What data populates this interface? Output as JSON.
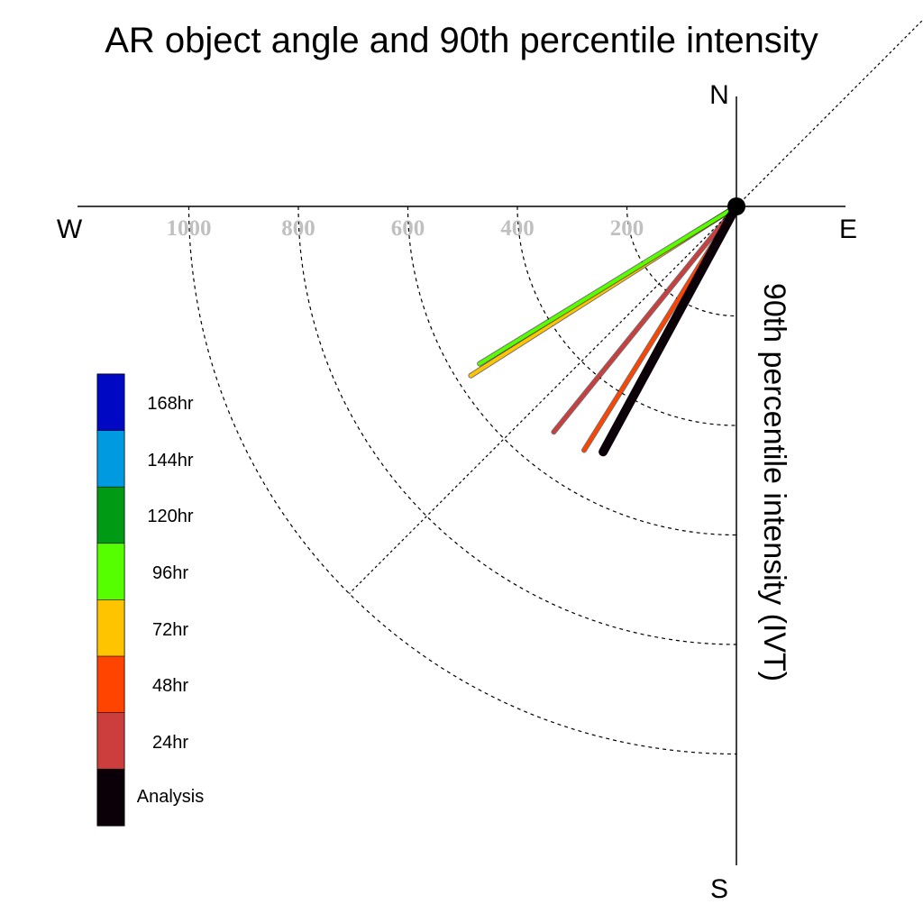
{
  "chart_data": {
    "type": "polar-line",
    "title": "AR object angle and 90th percentile intensity",
    "ylabel": "90th percentile intensity (IVT)",
    "compass": {
      "north": "N",
      "south": "S",
      "east": "E",
      "west": "W"
    },
    "radial_ticks": [
      "200",
      "400",
      "600",
      "800",
      "1000"
    ],
    "radial_tick_values": [
      200,
      400,
      600,
      800,
      1000
    ],
    "radial_max": 1000,
    "diagonals_deg": [
      45,
      225
    ],
    "series": [
      {
        "name": "72hr",
        "color": "#ffc400",
        "angle_deg": 237.5,
        "value": 575
      },
      {
        "name": "96hr",
        "color": "#55ff00",
        "angle_deg": 238.5,
        "value": 550
      },
      {
        "name": "24hr",
        "color": "#cc3d3d",
        "angle_deg": 219,
        "value": 530
      },
      {
        "name": "48hr",
        "color": "#ff4400",
        "angle_deg": 212,
        "value": 525
      },
      {
        "name": "Analysis",
        "color": "#0c0008",
        "angle_deg": 208.5,
        "value": 510
      }
    ],
    "legend": [
      {
        "label": "168hr",
        "color": "#0008c4"
      },
      {
        "label": "144hr",
        "color": "#009ae0"
      },
      {
        "label": "120hr",
        "color": "#009a14"
      },
      {
        "label": "96hr",
        "color": "#55ff00"
      },
      {
        "label": "72hr",
        "color": "#ffc400"
      },
      {
        "label": "48hr",
        "color": "#ff4400"
      },
      {
        "label": "24hr",
        "color": "#cc3d3d"
      },
      {
        "label": "Analysis",
        "color": "#0c0008"
      }
    ]
  }
}
